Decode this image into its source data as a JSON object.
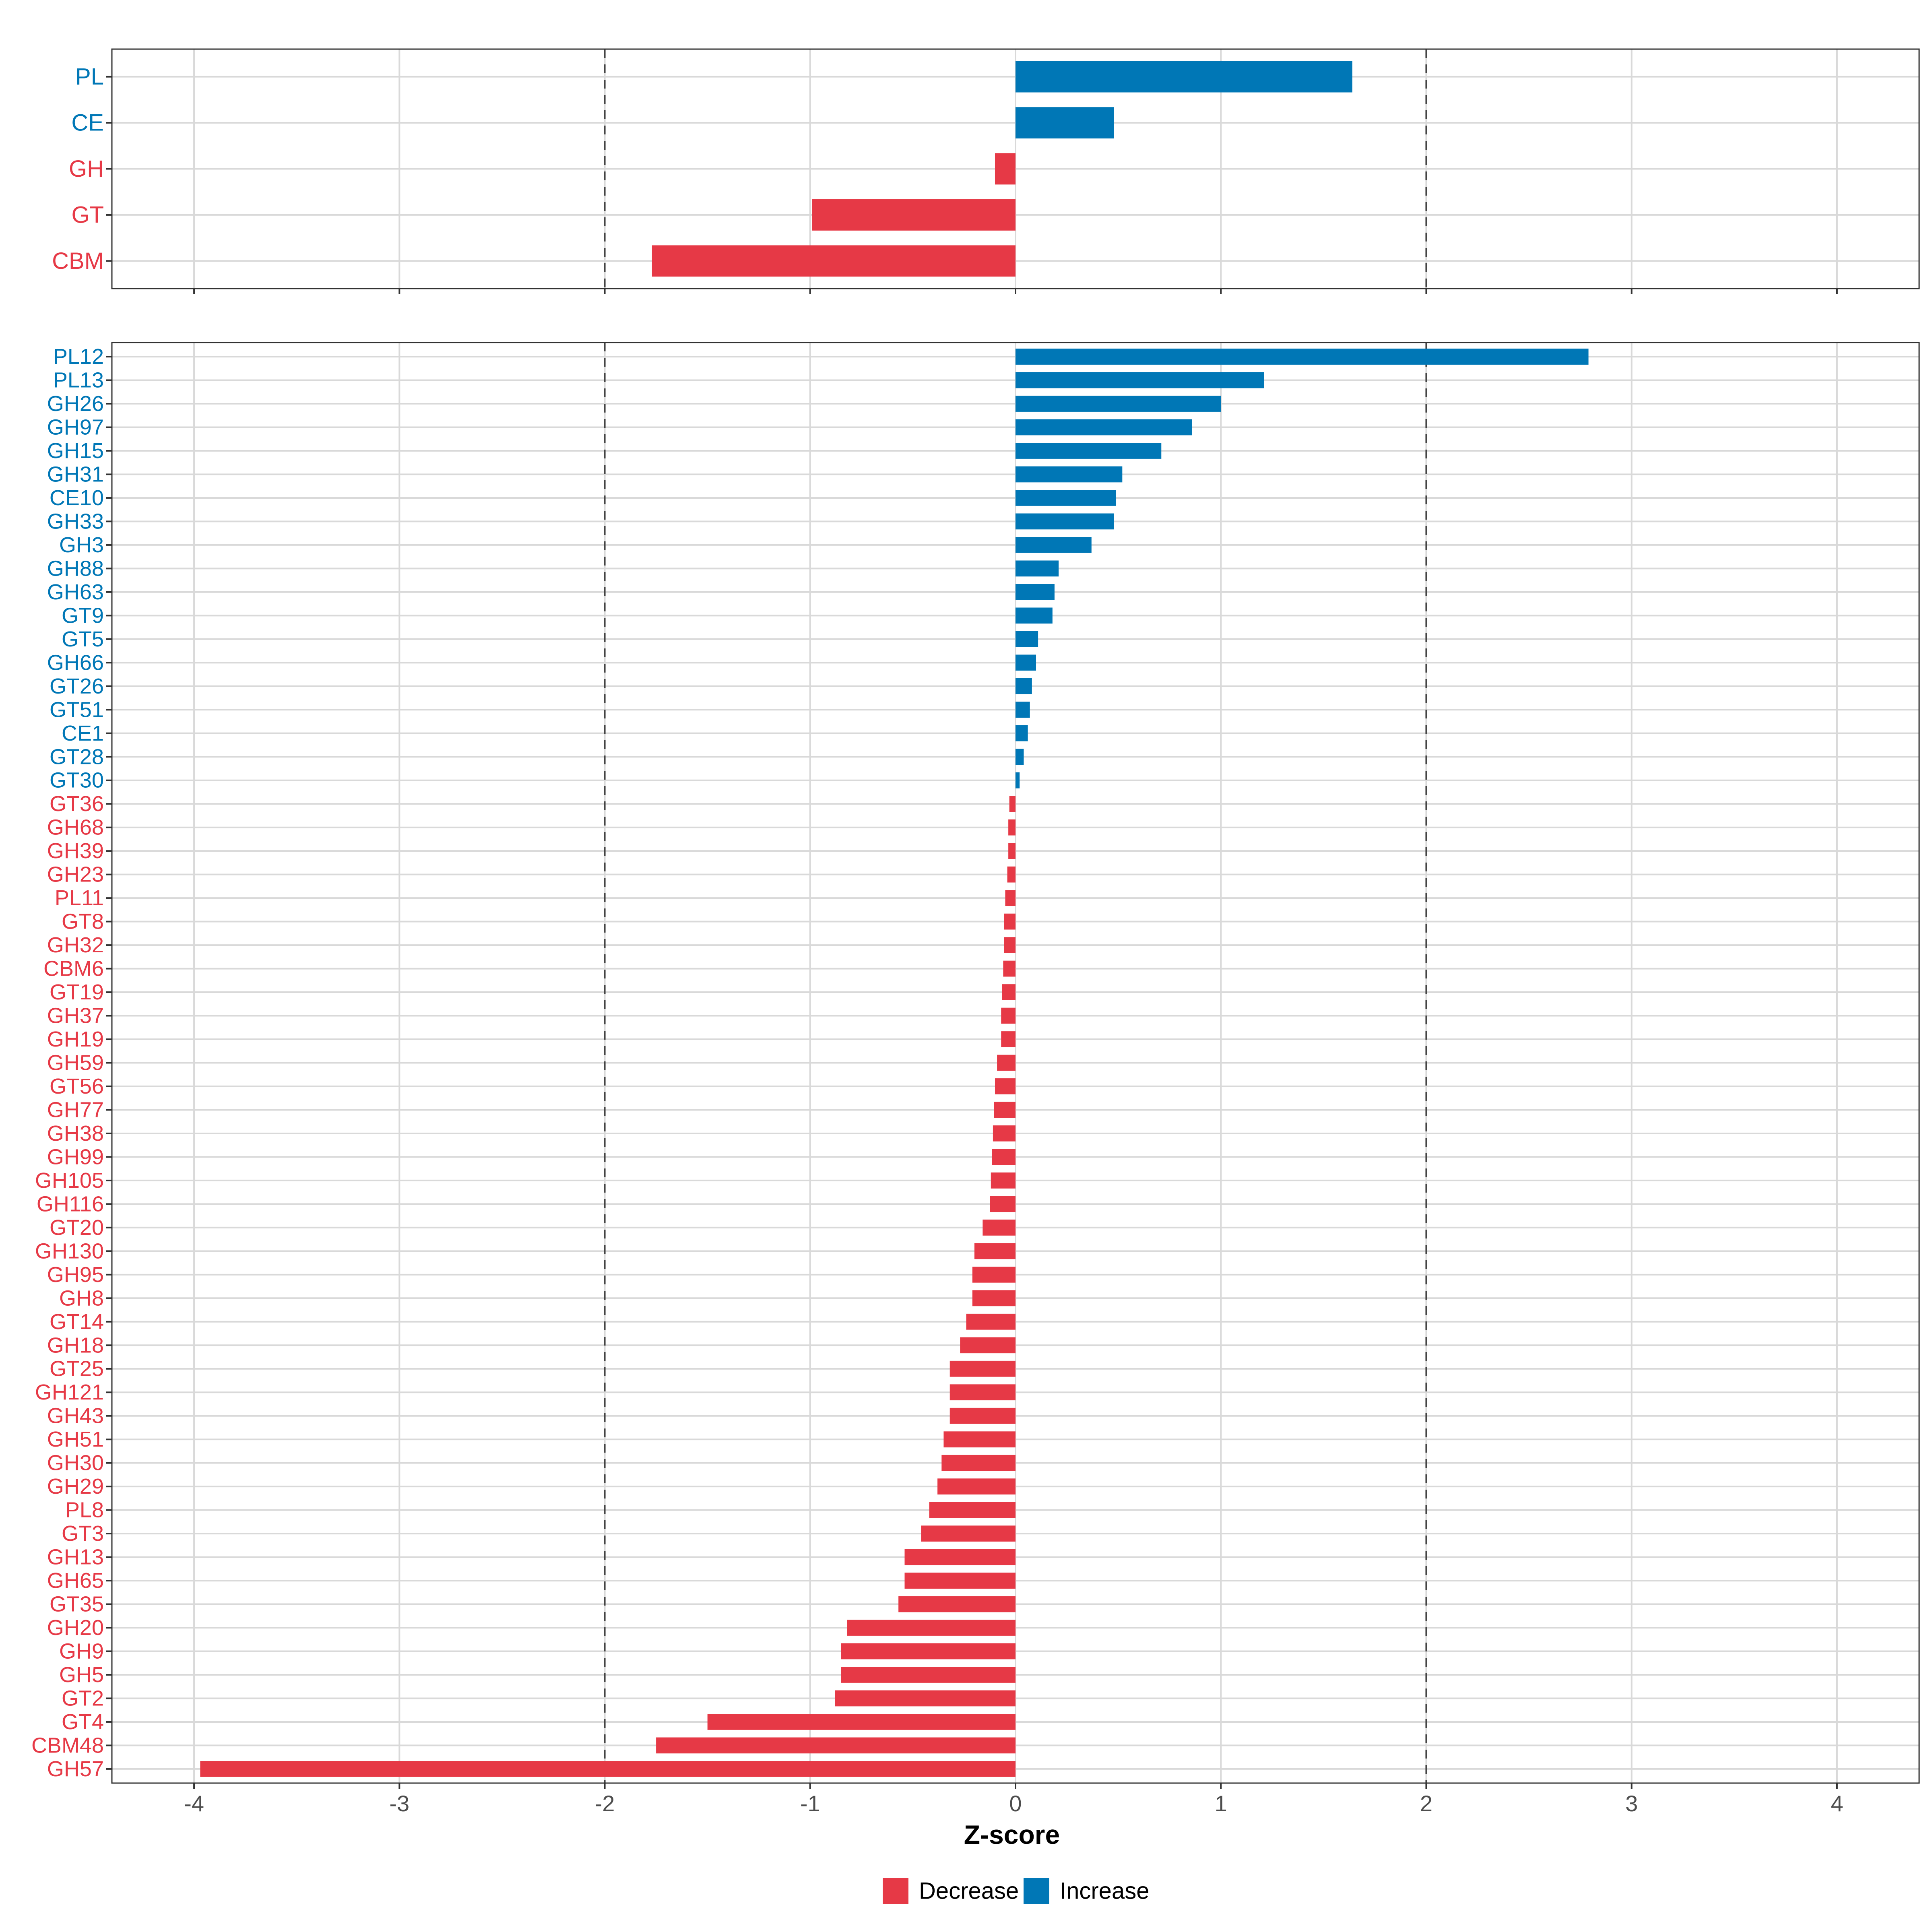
{
  "colors": {
    "decrease": "#E63946",
    "increase": "#0077B6"
  },
  "chart_data": [
    {
      "type": "bar",
      "orientation": "horizontal",
      "panel": "top",
      "categories": [
        "PL",
        "CE",
        "GH",
        "GT",
        "CBM"
      ],
      "values": [
        1.64,
        0.48,
        -0.1,
        -0.99,
        -1.77
      ],
      "xlim": [
        -4.4,
        4.4
      ],
      "reference_lines": [
        -2,
        2
      ],
      "grid": true
    },
    {
      "type": "bar",
      "orientation": "horizontal",
      "panel": "bottom",
      "categories": [
        "PL12",
        "PL13",
        "GH26",
        "GH97",
        "GH15",
        "GH31",
        "CE10",
        "GH33",
        "GH3",
        "GH88",
        "GH63",
        "GT9",
        "GT5",
        "GH66",
        "GT26",
        "GT51",
        "CE1",
        "GT28",
        "GT30",
        "GT36",
        "GH68",
        "GH39",
        "GH23",
        "PL11",
        "GT8",
        "GH32",
        "CBM6",
        "GT19",
        "GH37",
        "GH19",
        "GH59",
        "GT56",
        "GH77",
        "GH38",
        "GH99",
        "GH105",
        "GH116",
        "GT20",
        "GH130",
        "GH95",
        "GH8",
        "GT14",
        "GH18",
        "GT25",
        "GH121",
        "GH43",
        "GH51",
        "GH30",
        "GH29",
        "PL8",
        "GT3",
        "GH13",
        "GH65",
        "GT35",
        "GH20",
        "GH9",
        "GH5",
        "GT2",
        "GT4",
        "CBM48",
        "GH57"
      ],
      "values": [
        2.79,
        1.21,
        1.0,
        0.86,
        0.71,
        0.52,
        0.49,
        0.48,
        0.37,
        0.21,
        0.19,
        0.18,
        0.11,
        0.1,
        0.08,
        0.07,
        0.06,
        0.04,
        0.02,
        -0.03,
        -0.035,
        -0.035,
        -0.04,
        -0.05,
        -0.055,
        -0.055,
        -0.06,
        -0.065,
        -0.07,
        -0.07,
        -0.09,
        -0.1,
        -0.105,
        -0.11,
        -0.115,
        -0.12,
        -0.125,
        -0.16,
        -0.2,
        -0.21,
        -0.21,
        -0.24,
        -0.27,
        -0.32,
        -0.32,
        -0.32,
        -0.35,
        -0.36,
        -0.38,
        -0.42,
        -0.46,
        -0.54,
        -0.54,
        -0.57,
        -0.82,
        -0.85,
        -0.85,
        -0.88,
        -1.5,
        -1.75,
        -3.97
      ],
      "xlim": [
        -4.4,
        4.4
      ],
      "x_ticks": [
        "-4",
        "-3",
        "-2",
        "-1",
        "0",
        "1",
        "2",
        "3",
        "4"
      ],
      "xlabel": "Z-score",
      "reference_lines": [
        -2,
        2
      ],
      "grid": true
    }
  ],
  "legend": {
    "position": "bottom",
    "items": [
      {
        "label": "Decrease",
        "color_key": "decrease"
      },
      {
        "label": "Increase",
        "color_key": "increase"
      }
    ]
  }
}
